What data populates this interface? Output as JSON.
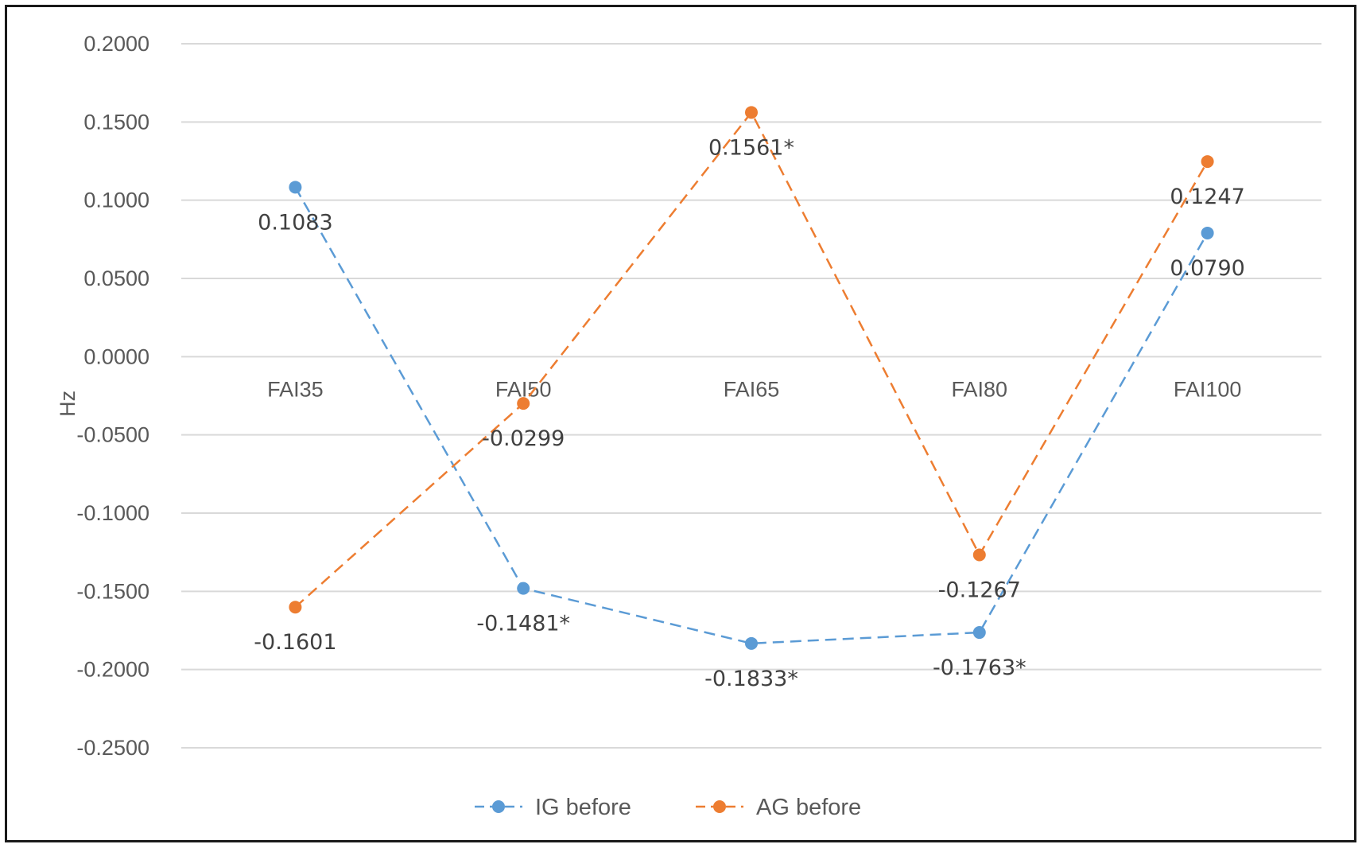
{
  "chart_data": {
    "type": "line",
    "categories": [
      "FAI35",
      "FAI50",
      "FAI65",
      "FAI80",
      "FAI100"
    ],
    "ylabel": "Hz",
    "ylim": [
      -0.25,
      0.2
    ],
    "ytick_step": 0.05,
    "ytick_labels": [
      "0.2000",
      "0.1500",
      "0.1000",
      "0.0500",
      "0.0000",
      "-0.0500",
      "-0.1000",
      "-0.1500",
      "-0.2000",
      "-0.2500"
    ],
    "grid": true,
    "legend_position": "bottom",
    "series": [
      {
        "name": "IG before",
        "color": "#5B9BD5",
        "values": [
          0.1083,
          -0.1481,
          -0.1833,
          -0.1763,
          0.079
        ],
        "labels": [
          "0.1083",
          "-0.1481*",
          "-0.1833*",
          "-0.1763*",
          "0.0790"
        ]
      },
      {
        "name": "AG before",
        "color": "#ED7D31",
        "values": [
          -0.1601,
          -0.0299,
          0.1561,
          -0.1267,
          0.1247
        ],
        "labels": [
          "-0.1601",
          "-0.0299",
          "0.1561*",
          "-0.1267",
          "0.1247"
        ]
      }
    ]
  }
}
